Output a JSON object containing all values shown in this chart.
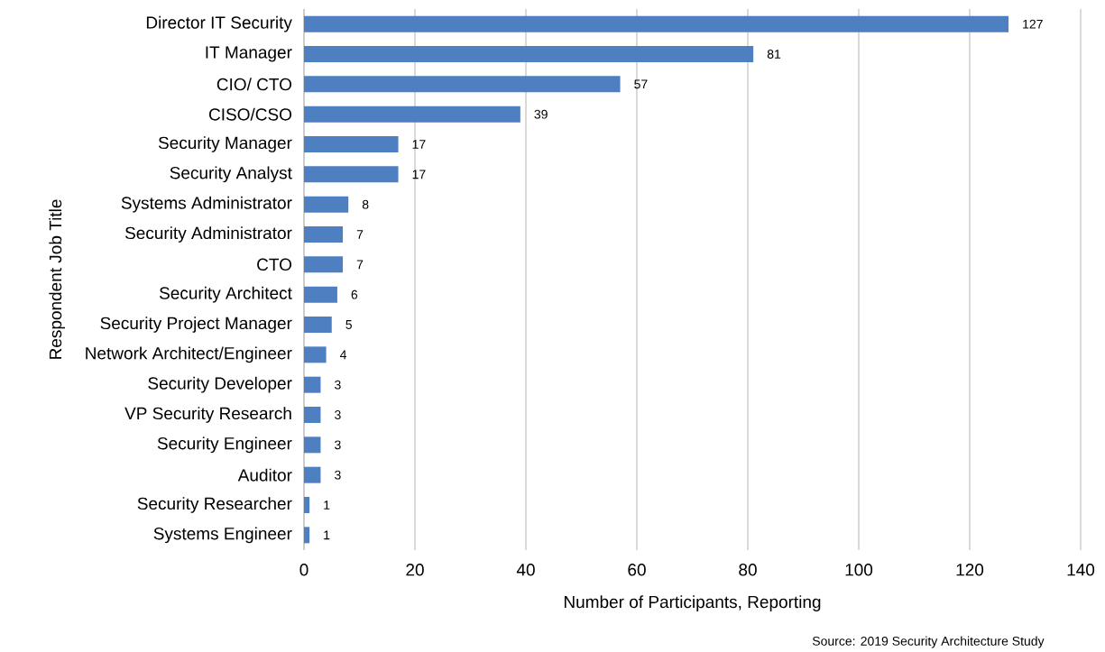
{
  "chart_data": {
    "type": "bar",
    "orientation": "horizontal",
    "xlabel": "Number of Participants, Reporting",
    "ylabel": "Respondent Job Title",
    "categories": [
      "Director IT Security",
      "IT Manager",
      "CIO/ CTO",
      "CISO/CSO",
      "Security Manager",
      "Security Analyst",
      "Systems Administrator",
      "Security Administrator",
      "CTO",
      "Security Architect",
      "Security Project Manager",
      "Network Architect/Engineer",
      "Security Developer",
      "VP Security Research",
      "Security Engineer",
      "Auditor",
      "Security Researcher",
      "Systems Engineer"
    ],
    "values": [
      127,
      81,
      57,
      39,
      17,
      17,
      8,
      7,
      7,
      6,
      5,
      4,
      3,
      3,
      3,
      3,
      1,
      1
    ],
    "color": "#4e7fc0",
    "data_labels": true,
    "xlim": [
      0,
      140
    ],
    "xticks": [
      0,
      20,
      40,
      60,
      80,
      100,
      120,
      140
    ],
    "grid": "x",
    "annotations": [
      "Source: 2019 Security Architecture Study"
    ]
  }
}
